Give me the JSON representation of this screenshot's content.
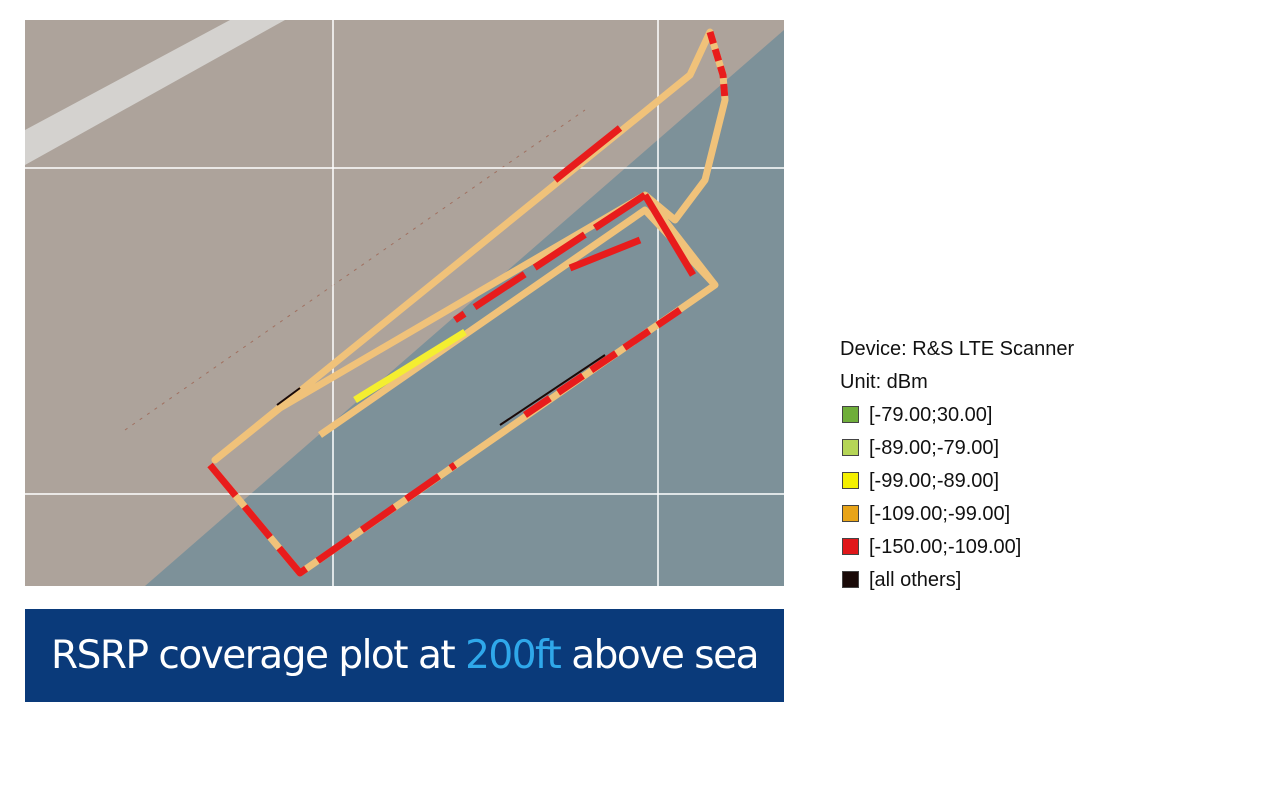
{
  "legend": {
    "device": "Device: R&S LTE Scanner",
    "unit": "Unit: dBm",
    "items": [
      {
        "label": "[-79.00;30.00]",
        "color": "#6fae3a"
      },
      {
        "label": "[-89.00;-79.00]",
        "color": "#b5d556"
      },
      {
        "label": "[-99.00;-89.00]",
        "color": "#f4f000"
      },
      {
        "label": "[-109.00;-99.00]",
        "color": "#e8a418"
      },
      {
        "label": "[-150.00;-109.00]",
        "color": "#e0171a"
      },
      {
        "label": "[all others]",
        "color": "#1a0a08"
      }
    ]
  },
  "caption": {
    "parts": [
      "RSRP coverage plot at",
      "200ft",
      "above sea level"
    ]
  }
}
